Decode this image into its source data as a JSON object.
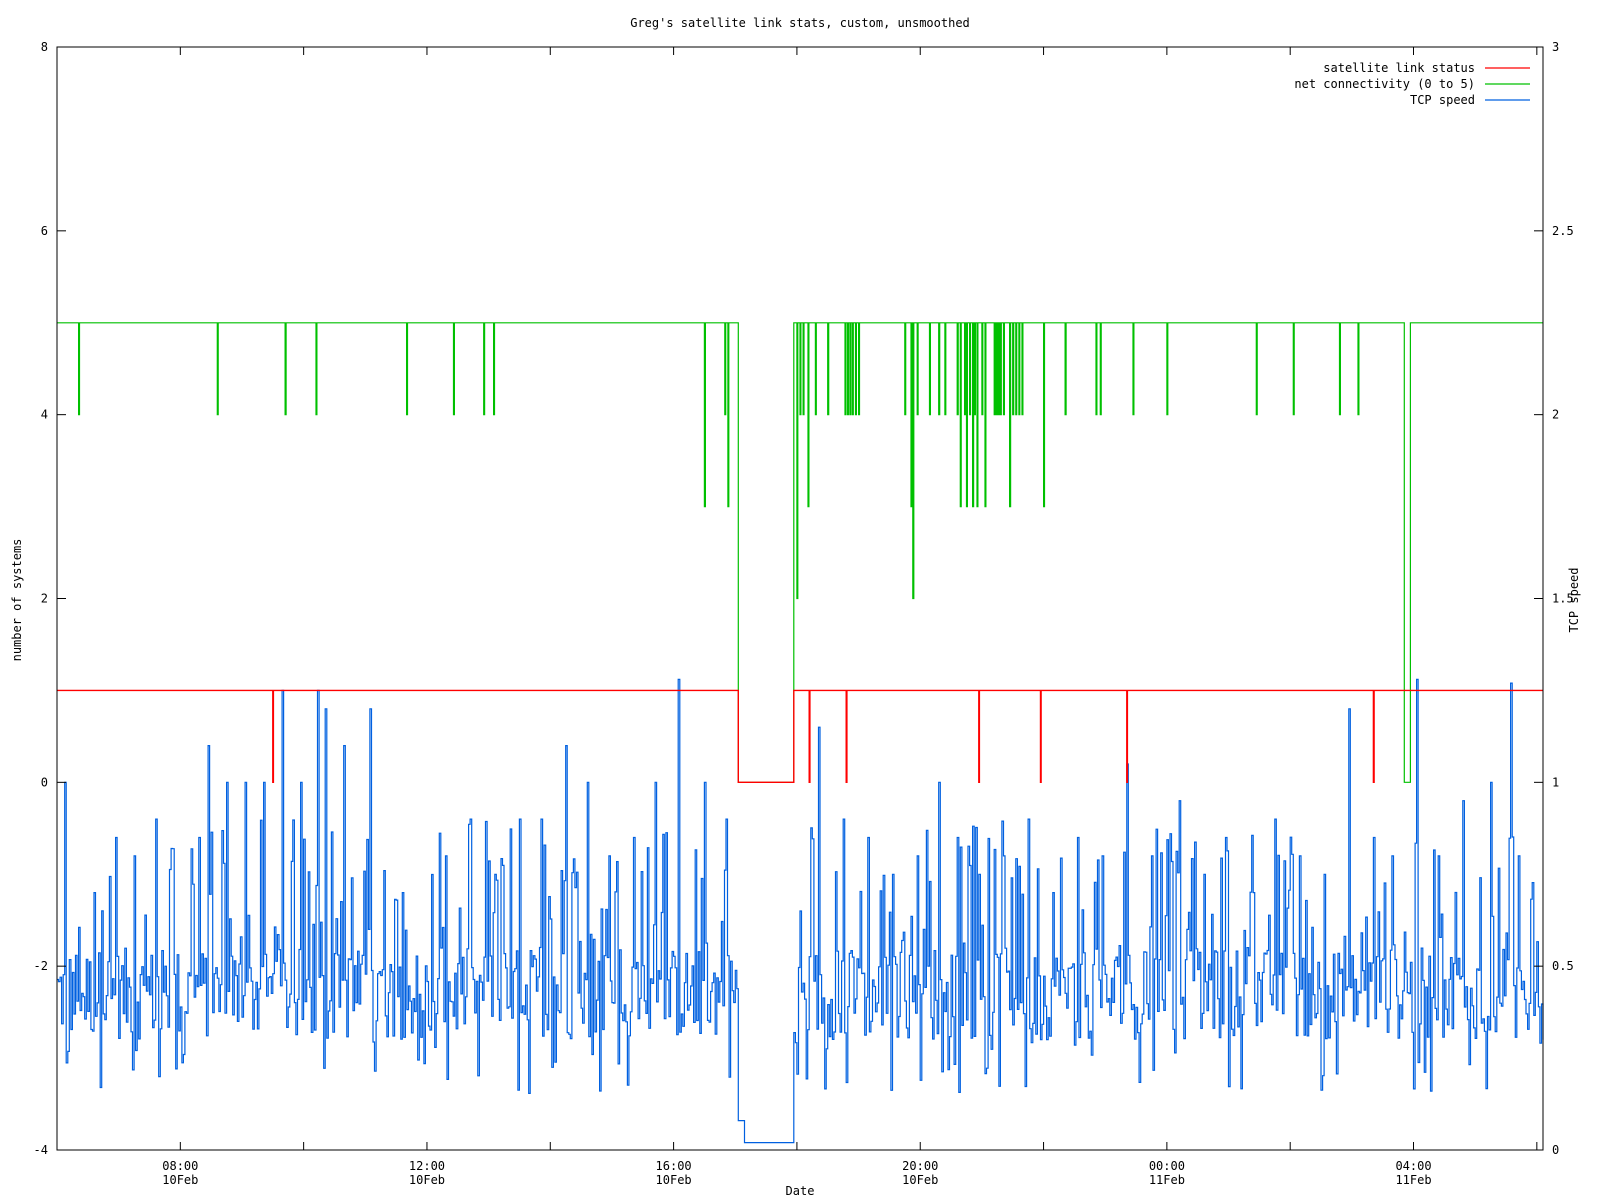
{
  "chart_data": {
    "type": "line",
    "title": "Greg's satellite link stats, custom, unsmoothed",
    "xlabel": "Date",
    "ylabel": "number of systems",
    "y2label": "TCP speed",
    "grid": false,
    "legend_position": "top-right",
    "ylim": [
      -4,
      8
    ],
    "y2lim": [
      0,
      3
    ],
    "xlim_hours": [
      6.0,
      30.1
    ],
    "y_ticks": [
      -4,
      -2,
      0,
      2,
      4,
      6,
      8
    ],
    "y2_ticks": [
      "0",
      "0.5",
      "1",
      "1.5",
      "2",
      "2.5",
      "3"
    ],
    "x_ticks": [
      {
        "hour": 8,
        "time": "08:00",
        "date": "10Feb"
      },
      {
        "hour": 12,
        "time": "12:00",
        "date": "10Feb"
      },
      {
        "hour": 16,
        "time": "16:00",
        "date": "10Feb"
      },
      {
        "hour": 20,
        "time": "20:00",
        "date": "10Feb"
      },
      {
        "hour": 24,
        "time": "00:00",
        "date": "11Feb"
      },
      {
        "hour": 28,
        "time": "04:00",
        "date": "11Feb"
      }
    ],
    "series": [
      {
        "name": "satellite link status",
        "color": "#ff0000",
        "axis": "y1",
        "base": 1,
        "outage": {
          "from": 17.05,
          "to": 17.95,
          "value": 0
        },
        "drops": [
          9.5,
          18.2,
          18.8,
          20.95,
          21.95,
          23.35,
          27.35
        ]
      },
      {
        "name": "net connectivity (0 to 5)",
        "color": "#00c000",
        "axis": "y1",
        "base": 5,
        "outage": {
          "from": 17.05,
          "to": 17.95,
          "value": 0
        },
        "dips": [
          [
            6.35,
            4
          ],
          [
            8.6,
            4
          ],
          [
            9.7,
            4
          ],
          [
            10.2,
            4
          ],
          [
            11.67,
            4
          ],
          [
            12.43,
            4
          ],
          [
            12.92,
            4
          ],
          [
            13.08,
            4
          ],
          [
            16.5,
            3
          ],
          [
            16.83,
            4
          ],
          [
            16.88,
            3
          ],
          [
            18.0,
            2
          ],
          [
            18.05,
            4
          ],
          [
            18.1,
            4
          ],
          [
            18.18,
            3
          ],
          [
            18.3,
            4
          ],
          [
            18.5,
            4
          ],
          [
            18.78,
            4
          ],
          [
            18.82,
            4
          ],
          [
            18.86,
            4
          ],
          [
            18.9,
            4
          ],
          [
            18.95,
            4
          ],
          [
            19.0,
            4
          ],
          [
            19.75,
            4
          ],
          [
            19.85,
            3
          ],
          [
            19.88,
            2
          ],
          [
            19.95,
            4
          ],
          [
            20.15,
            4
          ],
          [
            20.3,
            4
          ],
          [
            20.4,
            4
          ],
          [
            20.6,
            4
          ],
          [
            20.65,
            3
          ],
          [
            20.72,
            4
          ],
          [
            20.75,
            3
          ],
          [
            20.8,
            4
          ],
          [
            20.85,
            3
          ],
          [
            20.88,
            4
          ],
          [
            20.92,
            3
          ],
          [
            21.0,
            4
          ],
          [
            21.05,
            3
          ],
          [
            21.2,
            4
          ],
          [
            21.22,
            4
          ],
          [
            21.25,
            4
          ],
          [
            21.28,
            4
          ],
          [
            21.3,
            4
          ],
          [
            21.35,
            4
          ],
          [
            21.45,
            3
          ],
          [
            21.5,
            4
          ],
          [
            21.55,
            4
          ],
          [
            21.6,
            4
          ],
          [
            21.65,
            4
          ],
          [
            22.0,
            3
          ],
          [
            22.35,
            4
          ],
          [
            22.85,
            4
          ],
          [
            22.92,
            4
          ],
          [
            23.45,
            4
          ],
          [
            24.0,
            4
          ],
          [
            25.45,
            4
          ],
          [
            26.05,
            4
          ],
          [
            26.8,
            4
          ],
          [
            27.1,
            4
          ]
        ],
        "recovery_dip": {
          "from": 27.85,
          "to": 27.95,
          "value": 0
        }
      },
      {
        "name": "TCP speed",
        "color": "#0060e0",
        "axis": "y2",
        "typical_range": [
          0.3,
          0.55
        ],
        "outage_value": 0.02,
        "spikes": [
          [
            6.12,
            1.0
          ],
          [
            6.6,
            0.7
          ],
          [
            6.95,
            0.85
          ],
          [
            7.25,
            0.8
          ],
          [
            7.6,
            0.9
          ],
          [
            7.85,
            0.82
          ],
          [
            8.3,
            0.85
          ],
          [
            8.45,
            1.1
          ],
          [
            8.75,
            1.0
          ],
          [
            9.05,
            1.0
          ],
          [
            9.35,
            1.0
          ],
          [
            9.65,
            1.25
          ],
          [
            9.95,
            1.0
          ],
          [
            10.22,
            1.25
          ],
          [
            10.35,
            1.2
          ],
          [
            10.65,
            1.1
          ],
          [
            11.08,
            1.2
          ],
          [
            11.6,
            0.7
          ],
          [
            12.3,
            0.8
          ],
          [
            12.7,
            0.9
          ],
          [
            13.1,
            0.75
          ],
          [
            13.5,
            0.9
          ],
          [
            13.85,
            0.9
          ],
          [
            14.25,
            1.1
          ],
          [
            14.6,
            1.0
          ],
          [
            14.95,
            0.8
          ],
          [
            15.35,
            0.85
          ],
          [
            15.7,
            1.0
          ],
          [
            16.08,
            1.28
          ],
          [
            16.5,
            1.0
          ],
          [
            16.85,
            0.9
          ],
          [
            18.05,
            0.65
          ],
          [
            18.35,
            1.15
          ],
          [
            18.75,
            0.9
          ],
          [
            19.15,
            0.85
          ],
          [
            19.55,
            0.75
          ],
          [
            19.95,
            0.8
          ],
          [
            20.3,
            1.0
          ],
          [
            20.6,
            0.85
          ],
          [
            20.95,
            0.75
          ],
          [
            21.35,
            0.8
          ],
          [
            21.75,
            0.9
          ],
          [
            22.15,
            0.7
          ],
          [
            22.55,
            0.85
          ],
          [
            22.95,
            0.8
          ],
          [
            23.35,
            1.05
          ],
          [
            23.75,
            0.8
          ],
          [
            24.2,
            0.95
          ],
          [
            24.6,
            0.75
          ],
          [
            24.95,
            0.85
          ],
          [
            25.4,
            0.7
          ],
          [
            25.75,
            0.9
          ],
          [
            26.15,
            0.8
          ],
          [
            26.55,
            0.75
          ],
          [
            26.95,
            1.2
          ],
          [
            27.35,
            0.85
          ],
          [
            27.65,
            0.8
          ],
          [
            28.05,
            1.28
          ],
          [
            28.4,
            0.8
          ],
          [
            28.8,
            0.95
          ],
          [
            29.25,
            1.0
          ],
          [
            29.58,
            1.27
          ]
        ],
        "outage": {
          "from": 17.05,
          "to": 17.95
        }
      }
    ]
  }
}
